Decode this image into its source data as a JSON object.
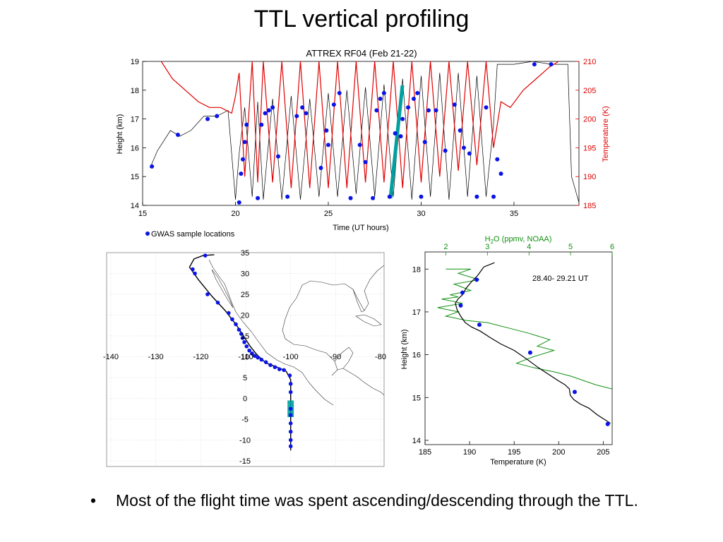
{
  "slide": {
    "title": "TTL vertical profiling",
    "bullet_mark": "•",
    "bullet": "Most of the flight time was spent ascending/descending through the TTL."
  },
  "colors": {
    "temperature": "#e00000",
    "sample": "#0a14e6",
    "water": "#109010",
    "highlight": "#00a0a0",
    "height": "#000000"
  },
  "chart_data": [
    {
      "type": "line",
      "title": "ATTREX RF04 (Feb 21-22)",
      "xlabel": "Time (UT hours)",
      "ylabel": "Height (km)",
      "y2label": "Temperature (K)",
      "xlim": [
        15,
        38.5
      ],
      "ylim": [
        14,
        19
      ],
      "y2lim": [
        185,
        210
      ],
      "xticks": [
        15,
        20,
        25,
        30,
        35
      ],
      "yticks": [
        14,
        15,
        16,
        17,
        18,
        19
      ],
      "y2ticks": [
        185,
        190,
        195,
        200,
        205,
        210
      ],
      "legend": "GWAS sample locations",
      "legend_position": "bottom-left",
      "series": [
        {
          "axis": "left",
          "x": [
            15.4,
            15.8,
            16.5,
            17.0,
            17.6,
            18.3,
            19.0,
            19.6,
            20.0,
            20.2,
            20.5,
            20.9,
            21.2,
            21.5,
            22.0,
            22.5,
            23.0,
            23.5,
            24.0,
            24.5,
            25.0,
            25.5,
            26.0,
            26.5,
            27.0,
            27.5,
            28.0,
            28.5,
            29.0,
            29.5,
            30.0,
            30.5,
            31.0,
            31.5,
            32.0,
            32.5,
            33.0,
            33.5,
            33.9,
            34.1,
            34.5,
            35.0,
            36.0,
            37.0,
            37.5,
            37.9,
            38.1,
            38.5
          ],
          "y": [
            15.3,
            15.9,
            16.6,
            16.4,
            16.6,
            17.1,
            17.1,
            17.3,
            14.2,
            15.8,
            17.4,
            14.3,
            17.6,
            14.2,
            17.7,
            14.2,
            17.8,
            14.2,
            17.7,
            14.3,
            17.9,
            14.3,
            18.0,
            14.4,
            18.1,
            14.3,
            18.2,
            14.3,
            18.4,
            14.2,
            18.5,
            14.3,
            18.6,
            14.2,
            18.6,
            14.3,
            18.5,
            14.3,
            16.8,
            18.9,
            18.9,
            18.9,
            19.0,
            18.9,
            18.9,
            18.9,
            15.0,
            14.1
          ]
        },
        {
          "axis": "right",
          "x": [
            16.0,
            16.6,
            17.3,
            18.0,
            18.6,
            19.2,
            19.8,
            20.0,
            20.2,
            20.5,
            20.9,
            21.2,
            21.5,
            22.0,
            22.5,
            23.0,
            23.5,
            24.0,
            24.5,
            25.0,
            25.5,
            26.0,
            26.5,
            27.0,
            27.5,
            28.0,
            28.5,
            29.0,
            29.5,
            30.0,
            30.5,
            31.0,
            31.5,
            32.0,
            32.5,
            33.0,
            33.5,
            33.9,
            34.3,
            34.8,
            35.5,
            36.2,
            36.9,
            37.4
          ],
          "y": [
            210,
            207,
            205,
            203,
            202,
            202,
            201,
            204,
            208,
            190,
            210,
            189,
            210,
            189,
            210,
            188,
            210,
            188,
            210,
            188,
            210,
            188,
            210,
            189,
            210,
            189,
            210,
            188,
            210,
            189,
            210,
            190,
            210,
            191,
            210,
            192,
            210,
            195,
            203,
            202,
            205,
            207,
            209,
            210
          ]
        },
        {
          "name": "GWAS sample locations",
          "axis": "left",
          "x": [
            15.5,
            16.9,
            18.5,
            19.0,
            20.2,
            20.3,
            20.4,
            20.5,
            20.6,
            21.2,
            21.4,
            21.6,
            21.8,
            22.0,
            22.3,
            22.8,
            23.3,
            23.6,
            23.8,
            24.6,
            24.9,
            25.0,
            25.3,
            25.6,
            26.2,
            26.7,
            27.0,
            27.4,
            27.6,
            27.8,
            28.0,
            28.3,
            28.6,
            28.9,
            29.0,
            29.3,
            29.6,
            29.8,
            30.0,
            30.2,
            30.4,
            30.8,
            31.3,
            31.8,
            32.1,
            32.3,
            32.6,
            33.0,
            33.5,
            33.9,
            34.1,
            34.3,
            36.1,
            37.0
          ],
          "y": [
            15.35,
            16.45,
            17.0,
            17.1,
            14.1,
            15.1,
            15.6,
            16.2,
            16.8,
            14.25,
            16.8,
            17.2,
            17.3,
            17.4,
            15.7,
            14.3,
            17.1,
            17.4,
            17.2,
            15.3,
            16.6,
            16.1,
            17.5,
            17.9,
            14.25,
            16.1,
            15.5,
            14.25,
            17.3,
            17.7,
            17.9,
            14.3,
            16.5,
            16.4,
            17.0,
            17.4,
            17.7,
            17.9,
            14.3,
            16.2,
            17.3,
            17.3,
            15.9,
            17.5,
            16.6,
            16.0,
            15.8,
            14.3,
            17.4,
            14.3,
            15.6,
            15.1,
            18.9,
            18.9
          ]
        }
      ]
    },
    {
      "type": "scatter",
      "xticks": [
        -140,
        -130,
        -120,
        -110,
        -100,
        -90,
        -80
      ],
      "yticks": [
        35,
        30,
        25,
        20,
        15,
        10,
        5,
        0,
        -5,
        -10,
        -15
      ],
      "xlim": [
        -141,
        -79
      ],
      "ylim": [
        -16,
        36
      ],
      "series": [
        {
          "name": "flight track",
          "x": [
            -117.0,
            -119.5,
            -121.5,
            -122.5,
            -120.5,
            -117.5,
            -114.5,
            -112.0,
            -110.5,
            -109.0,
            -107.5,
            -105.5,
            -103.0,
            -101.0,
            -100.0,
            -100.0,
            -100.0,
            -100.0,
            -100.0,
            -100.0
          ],
          "y": [
            34.5,
            34.3,
            33.5,
            31.5,
            28.5,
            24.5,
            21.0,
            17.5,
            15.0,
            12.5,
            10.5,
            8.5,
            7.5,
            6.5,
            4.5,
            2.0,
            -2.0,
            -6.0,
            -10.0,
            -12.5
          ]
        },
        {
          "name": "GWAS sample locations",
          "x": [
            -119.0,
            -121.8,
            -121.3,
            -118.5,
            -116.2,
            -113.8,
            -113.0,
            -112.2,
            -111.5,
            -111.0,
            -110.7,
            -110.3,
            -109.8,
            -109.2,
            -108.6,
            -108.0,
            -107.3,
            -106.5,
            -105.5,
            -104.5,
            -103.5,
            -102.5,
            -101.5,
            -100.2,
            -100.0,
            -100.0,
            -100.0,
            -100.0,
            -100.0,
            -100.0,
            -100.0,
            -100.0
          ],
          "y": [
            34.3,
            31.0,
            30.0,
            25.0,
            23.0,
            20.5,
            19.0,
            17.8,
            16.5,
            15.5,
            14.5,
            13.5,
            12.5,
            11.5,
            10.8,
            10.2,
            9.8,
            9.3,
            8.7,
            8.0,
            7.5,
            7.0,
            6.8,
            5.5,
            3.5,
            1.5,
            -2.5,
            -4.0,
            -6.0,
            -8.0,
            -10.0,
            -11.5
          ]
        }
      ],
      "highlight_box": {
        "x": [
          -100.7,
          -99.3
        ],
        "y": [
          -4.5,
          -0.5
        ]
      }
    },
    {
      "type": "line",
      "annotation": "28.40- 29.21 UT",
      "xlabel": "Temperature (K)",
      "ylabel": "Height (km)",
      "x2label": "H2O (ppmv, NOAA)",
      "x2label_parts": [
        "H",
        "2",
        "O (ppmv, NOAA)"
      ],
      "xlim": [
        185,
        206
      ],
      "x2lim": [
        1.5,
        6
      ],
      "ylim": [
        13.9,
        18.4
      ],
      "xticks": [
        185,
        190,
        195,
        200,
        205
      ],
      "x2ticks": [
        2,
        3,
        4,
        5,
        6
      ],
      "yticks": [
        14,
        15,
        16,
        17,
        18
      ],
      "series": [
        {
          "name": "Temperature",
          "x": [
            192.8,
            191.6,
            190.9,
            190.2,
            189.6,
            189.2,
            188.7,
            188.4,
            188.6,
            189.0,
            189.5,
            190.2,
            191.2,
            192.3,
            193.5,
            195.0,
            196.4,
            197.7,
            198.8,
            199.9,
            200.7,
            201.2,
            201.3,
            201.7,
            202.4,
            203.4,
            204.3,
            205.8
          ],
          "y": [
            18.15,
            18.05,
            17.85,
            17.7,
            17.55,
            17.4,
            17.3,
            17.2,
            17.05,
            16.9,
            16.75,
            16.65,
            16.55,
            16.4,
            16.25,
            16.1,
            15.9,
            15.7,
            15.55,
            15.4,
            15.3,
            15.2,
            15.05,
            14.95,
            14.85,
            14.75,
            14.6,
            14.4
          ]
        },
        {
          "name": "H2O",
          "x": [
            2.0,
            2.6,
            2.3,
            2.8,
            2.2,
            2.6,
            2.1,
            2.3,
            1.9,
            2.4,
            1.8,
            2.3,
            2.0,
            2.5,
            3.0,
            3.6,
            4.0,
            4.5,
            4.2,
            4.6,
            4.1,
            3.7,
            4.1,
            4.6,
            5.0,
            5.3,
            5.6,
            6.0
          ],
          "y": [
            18.0,
            18.0,
            17.9,
            17.75,
            17.65,
            17.5,
            17.4,
            17.35,
            17.3,
            17.2,
            17.1,
            17.0,
            16.9,
            16.8,
            16.75,
            16.6,
            16.5,
            16.35,
            16.2,
            16.1,
            15.95,
            15.8,
            15.7,
            15.6,
            15.5,
            15.4,
            15.3,
            15.2
          ]
        },
        {
          "name": "GWAS sample locations",
          "x": [
            190.8,
            189.2,
            189.0,
            191.1,
            196.8,
            201.8,
            205.5
          ],
          "y": [
            17.75,
            17.45,
            17.15,
            16.7,
            16.05,
            15.13,
            14.38
          ]
        }
      ]
    }
  ]
}
